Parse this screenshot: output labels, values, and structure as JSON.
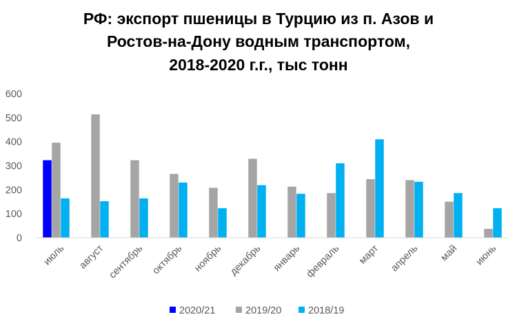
{
  "chart_data": {
    "type": "bar",
    "title_lines": [
      "РФ: экспорт пшеницы в Турцию из п. Азов и",
      "Ростов-на-Дону водным транспортом,",
      "2018-2020 г.г., тыс тонн"
    ],
    "categories": [
      "июль",
      "август",
      "сентябрь",
      "октябрь",
      "ноябрь",
      "декабрь",
      "январь",
      "февраль",
      "март",
      "апрель",
      "май",
      "июнь"
    ],
    "series": [
      {
        "name": "2020/21",
        "color": "#0000ff",
        "values": [
          323,
          null,
          null,
          null,
          null,
          null,
          null,
          null,
          null,
          null,
          null,
          null
        ]
      },
      {
        "name": "2019/20",
        "color": "#a5a5a5",
        "values": [
          396,
          514,
          323,
          266,
          208,
          329,
          213,
          186,
          244,
          240,
          150,
          37
        ]
      },
      {
        "name": "2018/19",
        "color": "#00b0f0",
        "values": [
          164,
          152,
          164,
          230,
          123,
          219,
          183,
          310,
          410,
          233,
          186,
          123
        ]
      }
    ],
    "y_ticks": [
      "0",
      "100",
      "200",
      "300",
      "400",
      "500",
      "600"
    ],
    "ylim": [
      0,
      600
    ],
    "xlabel": "",
    "ylabel": "",
    "grid": false,
    "legend_position": "bottom"
  }
}
